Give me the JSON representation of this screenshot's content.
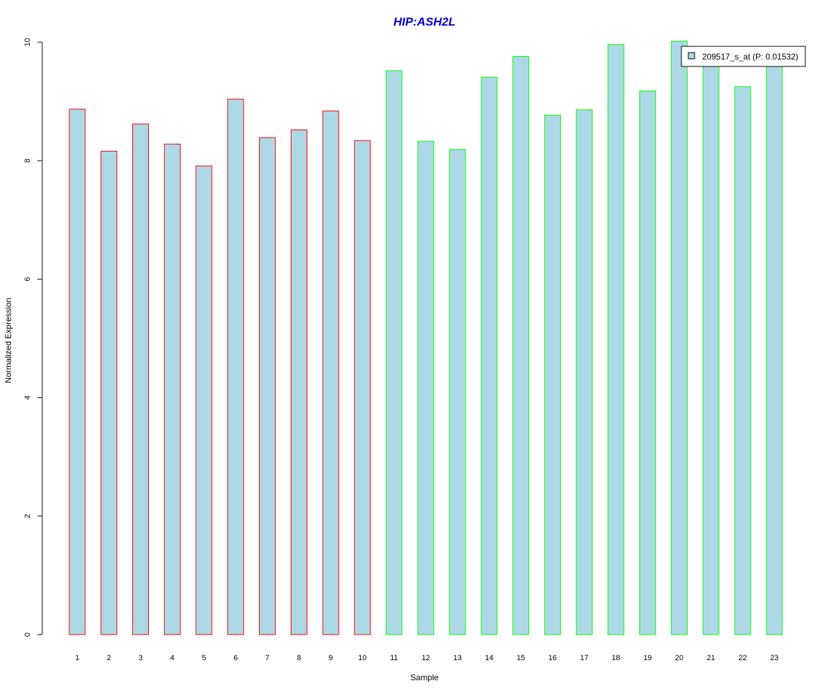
{
  "chart_data": {
    "type": "bar",
    "title": "HIP:ASH2L",
    "xlabel": "Sample",
    "ylabel": "Normalized Expression",
    "ylim": [
      0,
      10
    ],
    "yticks": [
      0,
      2,
      4,
      6,
      8,
      10
    ],
    "categories": [
      "1",
      "2",
      "3",
      "4",
      "5",
      "6",
      "7",
      "8",
      "9",
      "10",
      "11",
      "12",
      "13",
      "14",
      "15",
      "16",
      "17",
      "18",
      "19",
      "20",
      "21",
      "22",
      "23"
    ],
    "series": [
      {
        "name": "209517_s_at (P: 0.01532)",
        "values": [
          8.87,
          8.16,
          8.62,
          8.28,
          7.91,
          9.04,
          8.39,
          8.52,
          8.84,
          8.34,
          9.52,
          8.33,
          8.19,
          9.41,
          9.76,
          8.77,
          8.86,
          9.96,
          9.18,
          10.02,
          9.7,
          9.25,
          9.7
        ]
      }
    ],
    "groups": [
      "red",
      "red",
      "red",
      "red",
      "red",
      "red",
      "red",
      "red",
      "red",
      "red",
      "green",
      "green",
      "green",
      "green",
      "green",
      "green",
      "green",
      "green",
      "green",
      "green",
      "green",
      "green",
      "green"
    ],
    "grid": false,
    "legend_position": "top-right",
    "colors": {
      "fill": "#add8e6",
      "red_border": "#ff0000",
      "green_border": "#00ff00",
      "title": "#0000cd"
    }
  }
}
